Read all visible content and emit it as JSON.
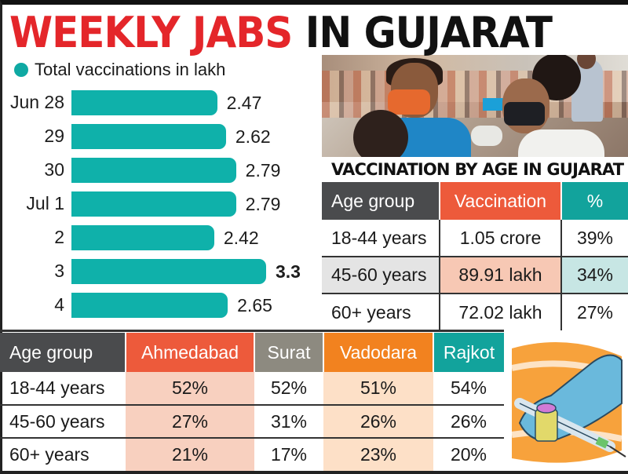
{
  "header": {
    "title_red": "WEEKLY JABS",
    "title_black": "IN GUJARAT"
  },
  "chart_data": {
    "type": "bar",
    "orientation": "horizontal",
    "title": "WEEKLY JABS IN GUJARAT",
    "legend": "Total vaccinations in lakh",
    "legend_position": "top-left",
    "categories": [
      "Jun 28",
      "29",
      "30",
      "Jul 1",
      "2",
      "3",
      "4"
    ],
    "values": [
      2.47,
      2.62,
      2.79,
      2.79,
      2.42,
      3.3,
      2.65
    ],
    "value_labels": [
      "2.47",
      "2.62",
      "2.79",
      "2.79",
      "2.42",
      "3.3",
      "2.65"
    ],
    "highlight_index": 5,
    "xlabel": "",
    "ylabel": "",
    "xlim": [
      0,
      3.3
    ],
    "grid": false,
    "color": "#0fb1aa"
  },
  "photo": {
    "subject": "vaccination-photo"
  },
  "age_table": {
    "title": "VACCINATION BY AGE IN GUJARAT",
    "headers": [
      "Age group",
      "Vaccination",
      "%"
    ],
    "rows": [
      [
        "18-44 years",
        "1.05 crore",
        "39%"
      ],
      [
        "45-60 years",
        "89.91 lakh",
        "34%"
      ],
      [
        "60+ years",
        "72.02 lakh",
        "27%"
      ]
    ],
    "colors": {
      "age": "#4a4b4d",
      "vaccination": "#ed5a3b",
      "percent": "#12a39c"
    }
  },
  "city_table": {
    "headers": [
      "Age group",
      "Ahmedabad",
      "Surat",
      "Vadodara",
      "Rajkot"
    ],
    "rows": [
      [
        "18-44 years",
        "52%",
        "52%",
        "51%",
        "54%"
      ],
      [
        "45-60 years",
        "27%",
        "31%",
        "26%",
        "26%"
      ],
      [
        "60+ years",
        "21%",
        "17%",
        "23%",
        "20%"
      ]
    ],
    "colors": {
      "age": "#4a4b4d",
      "ahmedabad": "#ed5a3b",
      "surat": "#8d8a80",
      "vadodara": "#f2821f",
      "rajkot": "#12a39c"
    }
  },
  "illustration": {
    "subject": "gloved-hand-syringe-vial-icon"
  }
}
